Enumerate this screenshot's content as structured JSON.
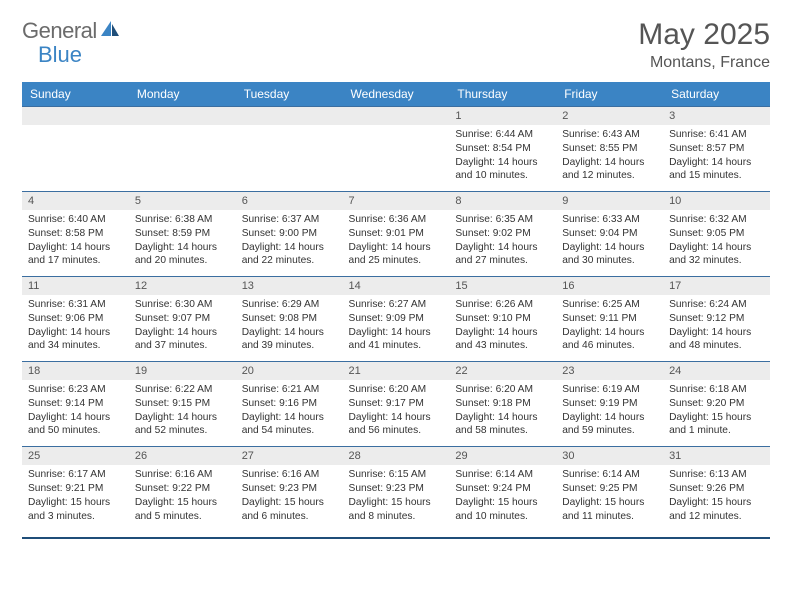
{
  "brand": {
    "name1": "General",
    "name2": "Blue",
    "color1": "#6b6b6b",
    "color2": "#3b84c4"
  },
  "title": "May 2025",
  "location": "Montans, France",
  "header_bg": "#3b84c4",
  "border_color": "#1f4e79",
  "daynum_bg": "#ececec",
  "text_color": "#333333",
  "fontsize_title": 30,
  "fontsize_location": 16,
  "fontsize_header": 12,
  "fontsize_cell": 10.2,
  "weekdays": [
    "Sunday",
    "Monday",
    "Tuesday",
    "Wednesday",
    "Thursday",
    "Friday",
    "Saturday"
  ],
  "weeks": [
    [
      {
        "n": "",
        "sr": "",
        "ss": "",
        "dl": ""
      },
      {
        "n": "",
        "sr": "",
        "ss": "",
        "dl": ""
      },
      {
        "n": "",
        "sr": "",
        "ss": "",
        "dl": ""
      },
      {
        "n": "",
        "sr": "",
        "ss": "",
        "dl": ""
      },
      {
        "n": "1",
        "sr": "Sunrise: 6:44 AM",
        "ss": "Sunset: 8:54 PM",
        "dl": "Daylight: 14 hours and 10 minutes."
      },
      {
        "n": "2",
        "sr": "Sunrise: 6:43 AM",
        "ss": "Sunset: 8:55 PM",
        "dl": "Daylight: 14 hours and 12 minutes."
      },
      {
        "n": "3",
        "sr": "Sunrise: 6:41 AM",
        "ss": "Sunset: 8:57 PM",
        "dl": "Daylight: 14 hours and 15 minutes."
      }
    ],
    [
      {
        "n": "4",
        "sr": "Sunrise: 6:40 AM",
        "ss": "Sunset: 8:58 PM",
        "dl": "Daylight: 14 hours and 17 minutes."
      },
      {
        "n": "5",
        "sr": "Sunrise: 6:38 AM",
        "ss": "Sunset: 8:59 PM",
        "dl": "Daylight: 14 hours and 20 minutes."
      },
      {
        "n": "6",
        "sr": "Sunrise: 6:37 AM",
        "ss": "Sunset: 9:00 PM",
        "dl": "Daylight: 14 hours and 22 minutes."
      },
      {
        "n": "7",
        "sr": "Sunrise: 6:36 AM",
        "ss": "Sunset: 9:01 PM",
        "dl": "Daylight: 14 hours and 25 minutes."
      },
      {
        "n": "8",
        "sr": "Sunrise: 6:35 AM",
        "ss": "Sunset: 9:02 PM",
        "dl": "Daylight: 14 hours and 27 minutes."
      },
      {
        "n": "9",
        "sr": "Sunrise: 6:33 AM",
        "ss": "Sunset: 9:04 PM",
        "dl": "Daylight: 14 hours and 30 minutes."
      },
      {
        "n": "10",
        "sr": "Sunrise: 6:32 AM",
        "ss": "Sunset: 9:05 PM",
        "dl": "Daylight: 14 hours and 32 minutes."
      }
    ],
    [
      {
        "n": "11",
        "sr": "Sunrise: 6:31 AM",
        "ss": "Sunset: 9:06 PM",
        "dl": "Daylight: 14 hours and 34 minutes."
      },
      {
        "n": "12",
        "sr": "Sunrise: 6:30 AM",
        "ss": "Sunset: 9:07 PM",
        "dl": "Daylight: 14 hours and 37 minutes."
      },
      {
        "n": "13",
        "sr": "Sunrise: 6:29 AM",
        "ss": "Sunset: 9:08 PM",
        "dl": "Daylight: 14 hours and 39 minutes."
      },
      {
        "n": "14",
        "sr": "Sunrise: 6:27 AM",
        "ss": "Sunset: 9:09 PM",
        "dl": "Daylight: 14 hours and 41 minutes."
      },
      {
        "n": "15",
        "sr": "Sunrise: 6:26 AM",
        "ss": "Sunset: 9:10 PM",
        "dl": "Daylight: 14 hours and 43 minutes."
      },
      {
        "n": "16",
        "sr": "Sunrise: 6:25 AM",
        "ss": "Sunset: 9:11 PM",
        "dl": "Daylight: 14 hours and 46 minutes."
      },
      {
        "n": "17",
        "sr": "Sunrise: 6:24 AM",
        "ss": "Sunset: 9:12 PM",
        "dl": "Daylight: 14 hours and 48 minutes."
      }
    ],
    [
      {
        "n": "18",
        "sr": "Sunrise: 6:23 AM",
        "ss": "Sunset: 9:14 PM",
        "dl": "Daylight: 14 hours and 50 minutes."
      },
      {
        "n": "19",
        "sr": "Sunrise: 6:22 AM",
        "ss": "Sunset: 9:15 PM",
        "dl": "Daylight: 14 hours and 52 minutes."
      },
      {
        "n": "20",
        "sr": "Sunrise: 6:21 AM",
        "ss": "Sunset: 9:16 PM",
        "dl": "Daylight: 14 hours and 54 minutes."
      },
      {
        "n": "21",
        "sr": "Sunrise: 6:20 AM",
        "ss": "Sunset: 9:17 PM",
        "dl": "Daylight: 14 hours and 56 minutes."
      },
      {
        "n": "22",
        "sr": "Sunrise: 6:20 AM",
        "ss": "Sunset: 9:18 PM",
        "dl": "Daylight: 14 hours and 58 minutes."
      },
      {
        "n": "23",
        "sr": "Sunrise: 6:19 AM",
        "ss": "Sunset: 9:19 PM",
        "dl": "Daylight: 14 hours and 59 minutes."
      },
      {
        "n": "24",
        "sr": "Sunrise: 6:18 AM",
        "ss": "Sunset: 9:20 PM",
        "dl": "Daylight: 15 hours and 1 minute."
      }
    ],
    [
      {
        "n": "25",
        "sr": "Sunrise: 6:17 AM",
        "ss": "Sunset: 9:21 PM",
        "dl": "Daylight: 15 hours and 3 minutes."
      },
      {
        "n": "26",
        "sr": "Sunrise: 6:16 AM",
        "ss": "Sunset: 9:22 PM",
        "dl": "Daylight: 15 hours and 5 minutes."
      },
      {
        "n": "27",
        "sr": "Sunrise: 6:16 AM",
        "ss": "Sunset: 9:23 PM",
        "dl": "Daylight: 15 hours and 6 minutes."
      },
      {
        "n": "28",
        "sr": "Sunrise: 6:15 AM",
        "ss": "Sunset: 9:23 PM",
        "dl": "Daylight: 15 hours and 8 minutes."
      },
      {
        "n": "29",
        "sr": "Sunrise: 6:14 AM",
        "ss": "Sunset: 9:24 PM",
        "dl": "Daylight: 15 hours and 10 minutes."
      },
      {
        "n": "30",
        "sr": "Sunrise: 6:14 AM",
        "ss": "Sunset: 9:25 PM",
        "dl": "Daylight: 15 hours and 11 minutes."
      },
      {
        "n": "31",
        "sr": "Sunrise: 6:13 AM",
        "ss": "Sunset: 9:26 PM",
        "dl": "Daylight: 15 hours and 12 minutes."
      }
    ]
  ]
}
